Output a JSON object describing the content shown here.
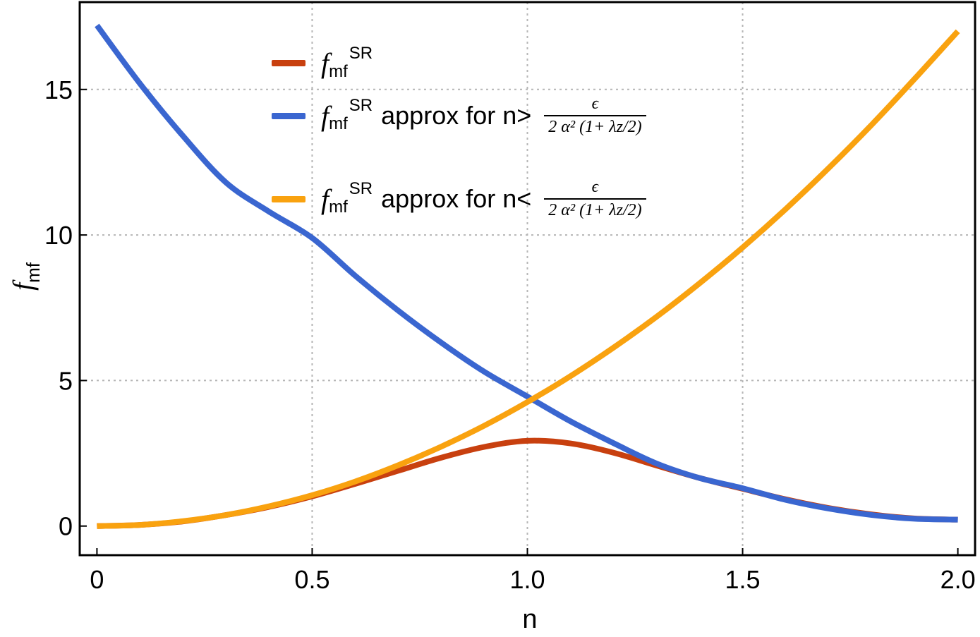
{
  "chart_data": {
    "type": "line",
    "title": "",
    "xlabel": "n",
    "ylabel": "f",
    "ylabel_sub": "mf",
    "xlim": [
      -0.04,
      2.04
    ],
    "ylim": [
      -1.0,
      18.0
    ],
    "grid": true,
    "legend_position": "top-center",
    "x_ticks": [
      0,
      0.5,
      1.0,
      1.5,
      2.0
    ],
    "x_tick_labels": [
      "0",
      "0.5",
      "1.0",
      "1.5",
      "2.0"
    ],
    "y_ticks": [
      0,
      5,
      10,
      15
    ],
    "y_tick_labels": [
      "0",
      "5",
      "10",
      "15"
    ],
    "legend": [
      {
        "f": "f",
        "sub": "mf",
        "sup": "SR",
        "suffix": "",
        "fraction_num": "",
        "fraction_den": ""
      },
      {
        "f": "f",
        "sub": "mf",
        "sup": "SR",
        "suffix": "approx for n>",
        "fraction_num": "ϵ",
        "fraction_den": "2 α² (1+ λz/2)"
      },
      {
        "f": "f",
        "sub": "mf",
        "sup": "SR",
        "suffix": "approx for n<",
        "fraction_num": "ϵ",
        "fraction_den": "2 α² (1+ λz/2)"
      }
    ],
    "series": [
      {
        "color": "#c8400f",
        "x": [
          0,
          0.1,
          0.2,
          0.3,
          0.4,
          0.5,
          0.6,
          0.7,
          0.8,
          0.9,
          1.0,
          1.1,
          1.2,
          1.3,
          1.4,
          1.5,
          1.6,
          1.7,
          1.8,
          1.9,
          2.0
        ],
        "y": [
          0,
          0.04,
          0.16,
          0.38,
          0.66,
          1.02,
          1.45,
          1.9,
          2.35,
          2.72,
          2.93,
          2.84,
          2.52,
          2.08,
          1.65,
          1.28,
          0.92,
          0.62,
          0.4,
          0.26,
          0.22
        ]
      },
      {
        "color": "#3a66d0",
        "x": [
          0,
          0.1,
          0.2,
          0.3,
          0.4,
          0.5,
          0.6,
          0.7,
          0.8,
          0.9,
          1.0,
          1.1,
          1.2,
          1.3,
          1.4,
          1.5,
          1.6,
          1.7,
          1.8,
          1.9,
          2.0
        ],
        "y": [
          17.2,
          15.2,
          13.4,
          11.8,
          10.8,
          9.9,
          8.6,
          7.4,
          6.3,
          5.3,
          4.45,
          3.6,
          2.85,
          2.15,
          1.65,
          1.3,
          0.9,
          0.6,
          0.38,
          0.25,
          0.22
        ]
      },
      {
        "color": "#f9a20f",
        "x": [
          0,
          0.1,
          0.2,
          0.3,
          0.4,
          0.5,
          0.6,
          0.7,
          0.8,
          0.9,
          1.0,
          1.1,
          1.2,
          1.3,
          1.4,
          1.5,
          1.6,
          1.7,
          1.8,
          1.9,
          2.0
        ],
        "y": [
          0,
          0.04,
          0.17,
          0.38,
          0.68,
          1.06,
          1.53,
          2.09,
          2.73,
          3.45,
          4.26,
          5.15,
          6.13,
          7.19,
          8.34,
          9.57,
          10.89,
          12.3,
          13.79,
          15.37,
          17.0
        ]
      }
    ]
  }
}
